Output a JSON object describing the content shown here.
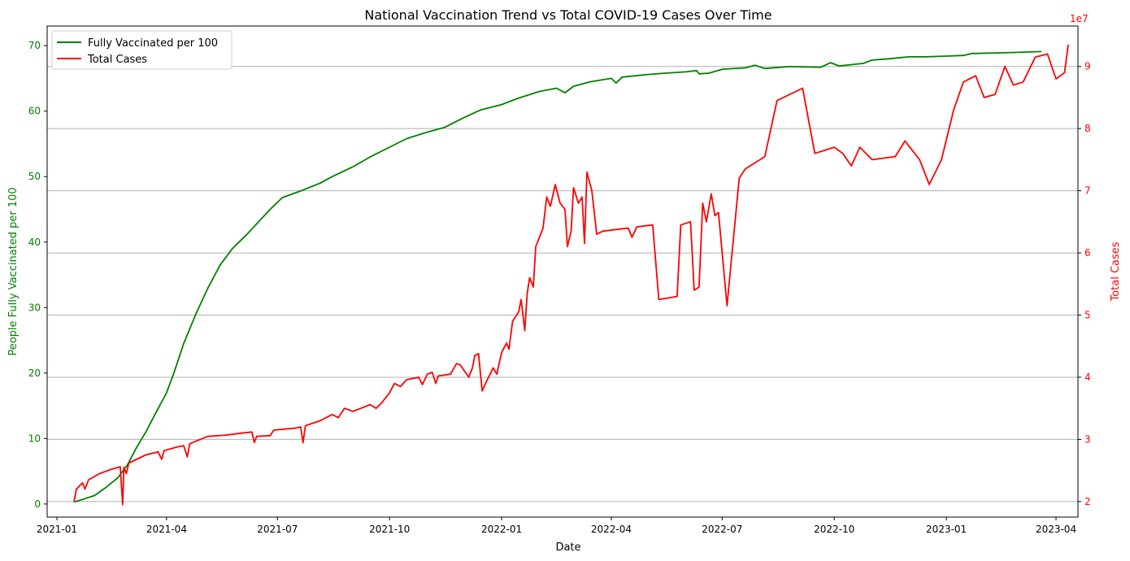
{
  "chart_data": {
    "type": "line",
    "title": "National Vaccination Trend vs Total COVID-19 Cases Over Time",
    "xlabel": "Date",
    "ylabel_left": "People Fully Vaccinated per 100",
    "ylabel_right": "Total Cases",
    "right_axis_exponent": "1e7",
    "x_ticks": [
      "2021-01",
      "2021-04",
      "2021-07",
      "2021-10",
      "2022-01",
      "2022-04",
      "2022-07",
      "2022-10",
      "2023-01",
      "2023-04"
    ],
    "x_range": [
      "2020-12-24",
      "2023-04-19"
    ],
    "ylim_left": [
      -2,
      73
    ],
    "yticks_left": [
      0,
      10,
      20,
      30,
      40,
      50,
      60,
      70
    ],
    "ylim_right": [
      1.75,
      9.65
    ],
    "yticks_right": [
      2,
      3,
      4,
      5,
      6,
      7,
      8,
      9
    ],
    "grid": "horizontal, right axis",
    "legend_position": "upper left",
    "colors": {
      "vaccinated": "#008000",
      "cases": "#ff0000",
      "grid": "#b0b0b0"
    },
    "series": [
      {
        "name": "Fully Vaccinated per 100",
        "axis": "left",
        "color": "#008000",
        "points": [
          [
            "2021-01-15",
            0.3
          ],
          [
            "2021-01-22",
            0.7
          ],
          [
            "2021-02-01",
            1.3
          ],
          [
            "2021-02-10",
            2.5
          ],
          [
            "2021-02-20",
            4.0
          ],
          [
            "2021-02-28",
            6.0
          ],
          [
            "2021-03-07",
            8.5
          ],
          [
            "2021-03-15",
            11.0
          ],
          [
            "2021-03-22",
            13.5
          ],
          [
            "2021-04-01",
            17.0
          ],
          [
            "2021-04-07",
            20.0
          ],
          [
            "2021-04-15",
            24.5
          ],
          [
            "2021-04-25",
            29.0
          ],
          [
            "2021-05-05",
            33.0
          ],
          [
            "2021-05-15",
            36.5
          ],
          [
            "2021-05-25",
            39.0
          ],
          [
            "2021-06-05",
            41.0
          ],
          [
            "2021-06-15",
            43.0
          ],
          [
            "2021-06-25",
            45.0
          ],
          [
            "2021-07-05",
            46.8
          ],
          [
            "2021-07-20",
            47.8
          ],
          [
            "2021-08-05",
            49.0
          ],
          [
            "2021-08-15",
            50.0
          ],
          [
            "2021-09-01",
            51.5
          ],
          [
            "2021-09-15",
            53.0
          ],
          [
            "2021-10-01",
            54.5
          ],
          [
            "2021-10-15",
            55.8
          ],
          [
            "2021-11-01",
            56.8
          ],
          [
            "2021-11-15",
            57.5
          ],
          [
            "2021-12-01",
            59.0
          ],
          [
            "2021-12-15",
            60.2
          ],
          [
            "2022-01-01",
            61.0
          ],
          [
            "2022-01-15",
            62.0
          ],
          [
            "2022-02-01",
            63.0
          ],
          [
            "2022-02-15",
            63.5
          ],
          [
            "2022-02-22",
            62.8
          ],
          [
            "2022-03-01",
            63.8
          ],
          [
            "2022-03-15",
            64.5
          ],
          [
            "2022-04-01",
            65.0
          ],
          [
            "2022-04-05",
            64.3
          ],
          [
            "2022-04-10",
            65.2
          ],
          [
            "2022-05-01",
            65.6
          ],
          [
            "2022-05-15",
            65.8
          ],
          [
            "2022-06-01",
            66.0
          ],
          [
            "2022-06-10",
            66.2
          ],
          [
            "2022-06-12",
            65.7
          ],
          [
            "2022-06-20",
            65.8
          ],
          [
            "2022-07-01",
            66.4
          ],
          [
            "2022-07-20",
            66.6
          ],
          [
            "2022-07-28",
            67.0
          ],
          [
            "2022-08-05",
            66.5
          ],
          [
            "2022-08-25",
            66.8
          ],
          [
            "2022-09-20",
            66.7
          ],
          [
            "2022-09-28",
            67.4
          ],
          [
            "2022-10-05",
            66.9
          ],
          [
            "2022-10-25",
            67.3
          ],
          [
            "2022-11-01",
            67.8
          ],
          [
            "2022-11-15",
            68.0
          ],
          [
            "2022-12-01",
            68.3
          ],
          [
            "2022-12-15",
            68.3
          ],
          [
            "2023-01-01",
            68.4
          ],
          [
            "2023-01-15",
            68.5
          ],
          [
            "2023-01-22",
            68.8
          ],
          [
            "2023-02-15",
            68.9
          ],
          [
            "2023-03-20",
            69.1
          ]
        ]
      },
      {
        "name": "Total Cases",
        "axis": "right",
        "color": "#ff0000",
        "points": [
          [
            "2021-01-15",
            2.0
          ],
          [
            "2021-01-17",
            2.2
          ],
          [
            "2021-01-22",
            2.3
          ],
          [
            "2021-01-24",
            2.2
          ],
          [
            "2021-01-27",
            2.35
          ],
          [
            "2021-02-05",
            2.45
          ],
          [
            "2021-02-15",
            2.52
          ],
          [
            "2021-02-22",
            2.56
          ],
          [
            "2021-02-24",
            1.95
          ],
          [
            "2021-02-25",
            2.55
          ],
          [
            "2021-02-27",
            2.45
          ],
          [
            "2021-03-01",
            2.62
          ],
          [
            "2021-03-15",
            2.75
          ],
          [
            "2021-03-25",
            2.8
          ],
          [
            "2021-03-28",
            2.68
          ],
          [
            "2021-03-30",
            2.82
          ],
          [
            "2021-04-10",
            2.88
          ],
          [
            "2021-04-15",
            2.9
          ],
          [
            "2021-04-18",
            2.72
          ],
          [
            "2021-04-20",
            2.93
          ],
          [
            "2021-05-05",
            3.05
          ],
          [
            "2021-05-20",
            3.07
          ],
          [
            "2021-06-01",
            3.1
          ],
          [
            "2021-06-10",
            3.12
          ],
          [
            "2021-06-12",
            2.95
          ],
          [
            "2021-06-14",
            3.05
          ],
          [
            "2021-06-25",
            3.06
          ],
          [
            "2021-06-28",
            3.15
          ],
          [
            "2021-07-15",
            3.18
          ],
          [
            "2021-07-20",
            3.2
          ],
          [
            "2021-07-22",
            2.95
          ],
          [
            "2021-07-24",
            3.22
          ],
          [
            "2021-08-05",
            3.3
          ],
          [
            "2021-08-15",
            3.4
          ],
          [
            "2021-08-20",
            3.35
          ],
          [
            "2021-08-25",
            3.5
          ],
          [
            "2021-09-01",
            3.45
          ],
          [
            "2021-09-10",
            3.52
          ],
          [
            "2021-09-15",
            3.56
          ],
          [
            "2021-09-20",
            3.5
          ],
          [
            "2021-09-25",
            3.6
          ],
          [
            "2021-10-01",
            3.75
          ],
          [
            "2021-10-05",
            3.9
          ],
          [
            "2021-10-10",
            3.85
          ],
          [
            "2021-10-15",
            3.96
          ],
          [
            "2021-10-25",
            4.0
          ],
          [
            "2021-10-28",
            3.88
          ],
          [
            "2021-11-01",
            4.05
          ],
          [
            "2021-11-05",
            4.08
          ],
          [
            "2021-11-08",
            3.9
          ],
          [
            "2021-11-10",
            4.02
          ],
          [
            "2021-11-20",
            4.05
          ],
          [
            "2021-11-25",
            4.22
          ],
          [
            "2021-11-28",
            4.2
          ],
          [
            "2021-12-05",
            4.0
          ],
          [
            "2021-12-08",
            4.15
          ],
          [
            "2021-12-10",
            4.35
          ],
          [
            "2021-12-13",
            4.38
          ],
          [
            "2021-12-16",
            3.78
          ],
          [
            "2021-12-20",
            3.95
          ],
          [
            "2021-12-25",
            4.15
          ],
          [
            "2021-12-28",
            4.05
          ],
          [
            "2022-01-01",
            4.4
          ],
          [
            "2022-01-05",
            4.55
          ],
          [
            "2022-01-07",
            4.45
          ],
          [
            "2022-01-10",
            4.9
          ],
          [
            "2022-01-15",
            5.05
          ],
          [
            "2022-01-17",
            5.25
          ],
          [
            "2022-01-20",
            4.75
          ],
          [
            "2022-01-22",
            5.35
          ],
          [
            "2022-01-24",
            5.6
          ],
          [
            "2022-01-27",
            5.45
          ],
          [
            "2022-01-29",
            6.1
          ],
          [
            "2022-02-01",
            6.25
          ],
          [
            "2022-02-04",
            6.4
          ],
          [
            "2022-02-07",
            6.9
          ],
          [
            "2022-02-10",
            6.75
          ],
          [
            "2022-02-14",
            7.1
          ],
          [
            "2022-02-18",
            6.8
          ],
          [
            "2022-02-22",
            6.7
          ],
          [
            "2022-02-24",
            6.1
          ],
          [
            "2022-02-27",
            6.35
          ],
          [
            "2022-03-01",
            7.05
          ],
          [
            "2022-03-05",
            6.8
          ],
          [
            "2022-03-08",
            6.9
          ],
          [
            "2022-03-10",
            6.15
          ],
          [
            "2022-03-12",
            7.3
          ],
          [
            "2022-03-16",
            7.0
          ],
          [
            "2022-03-20",
            6.3
          ],
          [
            "2022-03-25",
            6.35
          ],
          [
            "2022-04-15",
            6.4
          ],
          [
            "2022-04-18",
            6.25
          ],
          [
            "2022-04-22",
            6.42
          ],
          [
            "2022-05-05",
            6.45
          ],
          [
            "2022-05-10",
            5.25
          ],
          [
            "2022-05-25",
            5.3
          ],
          [
            "2022-05-28",
            6.45
          ],
          [
            "2022-06-05",
            6.5
          ],
          [
            "2022-06-08",
            5.4
          ],
          [
            "2022-06-12",
            5.45
          ],
          [
            "2022-06-15",
            6.8
          ],
          [
            "2022-06-18",
            6.5
          ],
          [
            "2022-06-22",
            6.95
          ],
          [
            "2022-06-25",
            6.6
          ],
          [
            "2022-06-28",
            6.65
          ],
          [
            "2022-07-05",
            5.15
          ],
          [
            "2022-07-15",
            7.2
          ],
          [
            "2022-07-20",
            7.35
          ],
          [
            "2022-08-05",
            7.55
          ],
          [
            "2022-08-15",
            8.45
          ],
          [
            "2022-09-05",
            8.65
          ],
          [
            "2022-09-15",
            7.6
          ],
          [
            "2022-10-01",
            7.7
          ],
          [
            "2022-10-08",
            7.6
          ],
          [
            "2022-10-15",
            7.4
          ],
          [
            "2022-10-22",
            7.7
          ],
          [
            "2022-11-01",
            7.5
          ],
          [
            "2022-11-20",
            7.55
          ],
          [
            "2022-11-28",
            7.8
          ],
          [
            "2022-12-10",
            7.5
          ],
          [
            "2022-12-18",
            7.1
          ],
          [
            "2022-12-28",
            7.5
          ],
          [
            "2023-01-07",
            8.3
          ],
          [
            "2023-01-15",
            8.75
          ],
          [
            "2023-01-25",
            8.85
          ],
          [
            "2023-02-01",
            8.5
          ],
          [
            "2023-02-10",
            8.55
          ],
          [
            "2023-02-18",
            9.0
          ],
          [
            "2023-02-25",
            8.7
          ],
          [
            "2023-03-05",
            8.75
          ],
          [
            "2023-03-15",
            9.15
          ],
          [
            "2023-03-25",
            9.2
          ],
          [
            "2023-04-01",
            8.8
          ],
          [
            "2023-04-08",
            8.9
          ],
          [
            "2023-04-11",
            9.35
          ]
        ]
      }
    ]
  }
}
